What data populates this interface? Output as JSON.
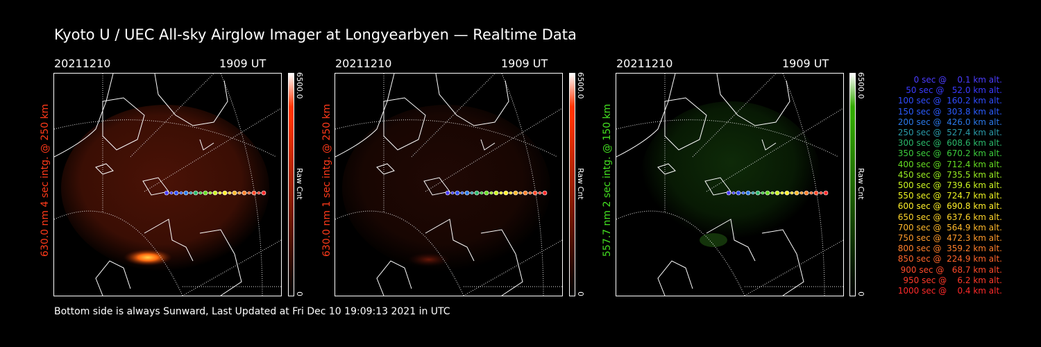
{
  "title": "Kyoto U / UEC All-sky Airglow Imager at Longyearbyen — Realtime Data",
  "footer": "Bottom side is always Sunward, Last Updated at Fri Dec 10 19:09:13 2021 in UTC",
  "panels": [
    {
      "date": "20211210",
      "time": "1909 UT",
      "side_label": "630.0 nm 4 sec intg. @ 250 km",
      "label_color": "#ff3a1a",
      "cbar_max": "6500.0",
      "cbar_min": "0",
      "cbar_unit": "Raw Cnt",
      "cbar_color": "#ff3300"
    },
    {
      "date": "20211210",
      "time": "1909 UT",
      "side_label": "630.0 nm 1 sec intg. @ 250 km",
      "label_color": "#ff3a1a",
      "cbar_max": "6500.0",
      "cbar_min": "0",
      "cbar_unit": "Raw Cnt",
      "cbar_color": "#ff3300"
    },
    {
      "date": "20211210",
      "time": "1909 UT",
      "side_label": "557.7 nm 2 sec intg. @ 150 km",
      "label_color": "#44e021",
      "cbar_max": "6500.0",
      "cbar_min": "0",
      "cbar_unit": "Raw Cnt",
      "cbar_color": "#33aa00"
    }
  ],
  "legend": [
    {
      "text": "   0 sec @    0.1 km alt.",
      "color": "#4b3cff"
    },
    {
      "text": "  50 sec @   52.0 km alt.",
      "color": "#3a3aff"
    },
    {
      "text": " 100 sec @  160.2 km alt.",
      "color": "#2f4cff"
    },
    {
      "text": " 150 sec @  303.8 km alt.",
      "color": "#2a5cff"
    },
    {
      "text": " 200 sec @  426.0 km alt.",
      "color": "#2a78e8"
    },
    {
      "text": " 250 sec @  527.4 km alt.",
      "color": "#2a9aa8"
    },
    {
      "text": " 300 sec @  608.6 km alt.",
      "color": "#2ab86a"
    },
    {
      "text": " 350 sec @  670.2 km alt.",
      "color": "#3ccc3c"
    },
    {
      "text": " 400 sec @  712.4 km alt.",
      "color": "#66dd22"
    },
    {
      "text": " 450 sec @  735.5 km alt.",
      "color": "#99ee22"
    },
    {
      "text": " 500 sec @  739.6 km alt.",
      "color": "#ccf522"
    },
    {
      "text": " 550 sec @  724.7 km alt.",
      "color": "#eef522"
    },
    {
      "text": " 600 sec @  690.8 km alt.",
      "color": "#fff02a"
    },
    {
      "text": " 650 sec @  637.6 km alt.",
      "color": "#ffd52a"
    },
    {
      "text": " 700 sec @  564.9 km alt.",
      "color": "#ffb82a"
    },
    {
      "text": " 750 sec @  472.3 km alt.",
      "color": "#ff9a2a"
    },
    {
      "text": " 800 sec @  359.2 km alt.",
      "color": "#ff7f2a"
    },
    {
      "text": " 850 sec @  224.9 km alt.",
      "color": "#ff652a"
    },
    {
      "text": " 900 sec @   68.7 km alt.",
      "color": "#ff4a2a"
    },
    {
      "text": " 950 sec @    6.2 km alt.",
      "color": "#ff3a2a"
    },
    {
      "text": "1000 sec @    0.4 km alt.",
      "color": "#ff2a2a"
    }
  ],
  "colors": {
    "red_glow": "#b82a08",
    "green_glow": "#1c5a10",
    "background": "#000000",
    "lines": "#ffffff"
  }
}
